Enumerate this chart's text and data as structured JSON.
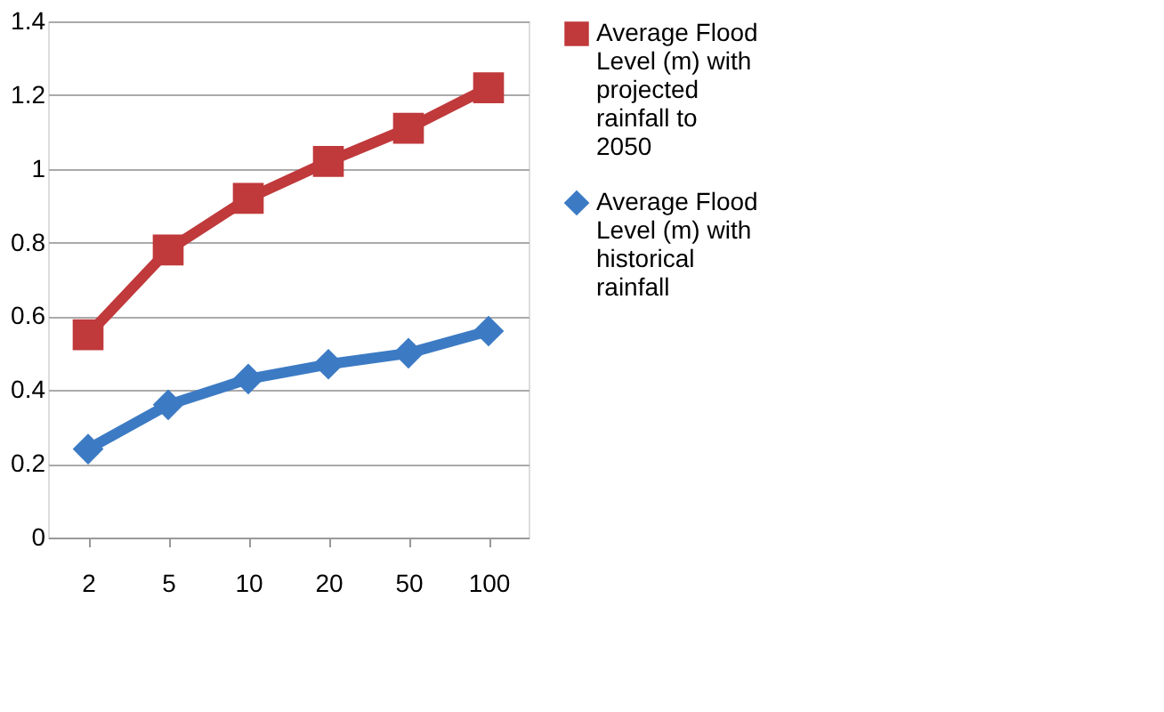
{
  "chart_data": {
    "type": "line",
    "categories": [
      "2",
      "5",
      "10",
      "20",
      "50",
      "100"
    ],
    "series": [
      {
        "name": "Average Flood Level (m) with projected rainfall to 2050",
        "color": "#c0393b",
        "marker": "square",
        "values": [
          0.55,
          0.78,
          0.92,
          1.02,
          1.11,
          1.22
        ]
      },
      {
        "name": "Average Flood Level (m) with historical rainfall",
        "color": "#3c7bc4",
        "marker": "diamond",
        "values": [
          0.24,
          0.36,
          0.43,
          0.47,
          0.5,
          0.56
        ]
      }
    ],
    "ylim": [
      0,
      1.4
    ],
    "yticks": [
      0,
      0.2,
      0.4,
      0.6,
      0.8,
      1,
      1.2,
      1.4
    ],
    "grid": "y",
    "legend": "right",
    "line_style": "solid"
  }
}
